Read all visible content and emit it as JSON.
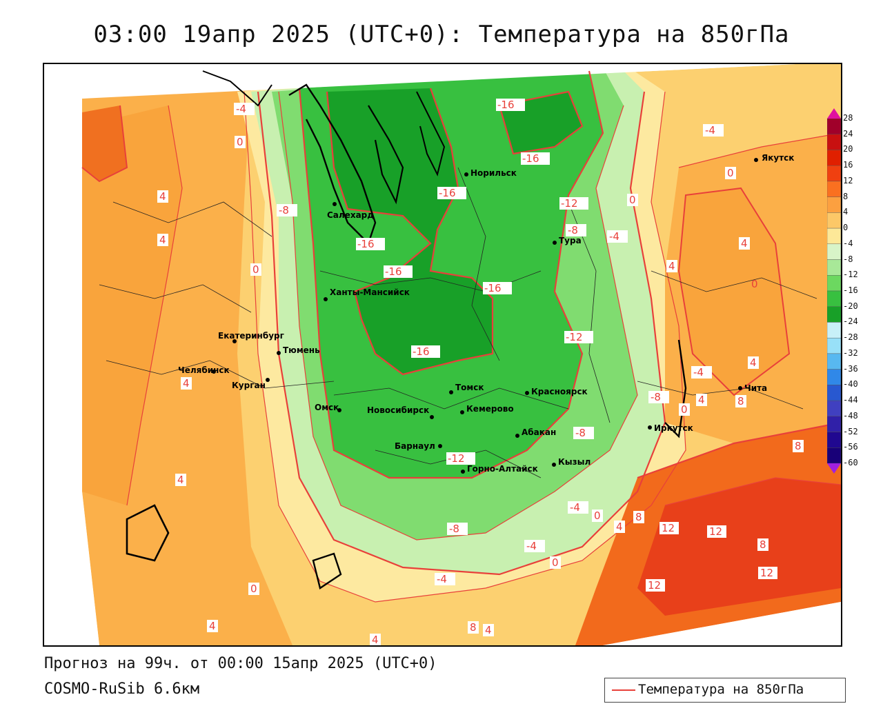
{
  "title": "03:00 19апр 2025 (UTC+0): Температура на 850гПа",
  "footer": {
    "forecast": "Прогноз на 99ч. от 00:00 15апр 2025 (UTC+0)",
    "model": "COSMO-RuSib 6.6км"
  },
  "legend": {
    "line_label": "Температура на 850гПа",
    "line_color": "#e8403a"
  },
  "colorbar": {
    "levels": [
      "28",
      "24",
      "20",
      "16",
      "12",
      "8",
      "4",
      "0",
      "-4",
      "-8",
      "-12",
      "-16",
      "-20",
      "-24",
      "-28",
      "-32",
      "-36",
      "-40",
      "-44",
      "-48",
      "-52",
      "-56",
      "-60"
    ],
    "colors": [
      "#a0002a",
      "#c81010",
      "#e02000",
      "#f04010",
      "#fa7020",
      "#fca040",
      "#fcc868",
      "#fde898",
      "#d8f4c8",
      "#a8e898",
      "#6cd860",
      "#38c040",
      "#18a028",
      "#c8f0f8",
      "#98e0f8",
      "#58b8f0",
      "#3088e8",
      "#2858d0",
      "#4040c0",
      "#3020a8",
      "#200890",
      "#180078"
    ]
  },
  "cities": [
    {
      "name": "Якутск"
    },
    {
      "name": "Норильск"
    },
    {
      "name": "Салехард"
    },
    {
      "name": "Тура"
    },
    {
      "name": "Ханты-Мансийск"
    },
    {
      "name": "Екатеринбург"
    },
    {
      "name": "Тюмень"
    },
    {
      "name": "Челябинск"
    },
    {
      "name": "Курган"
    },
    {
      "name": "Омск"
    },
    {
      "name": "Томск"
    },
    {
      "name": "Красноярск"
    },
    {
      "name": "Новосибирск"
    },
    {
      "name": "Кемерово"
    },
    {
      "name": "Абакан"
    },
    {
      "name": "Барнаул"
    },
    {
      "name": "Иркутск"
    },
    {
      "name": "Горно-Алтайск"
    },
    {
      "name": "Кызыл"
    },
    {
      "name": "Чита"
    }
  ],
  "contour_labels": [
    "-4",
    "-16",
    "-4",
    "0",
    "-16",
    "0",
    "4",
    "-16",
    "-12",
    "0",
    "-8",
    "4",
    "-16",
    "-8",
    "-4",
    "4",
    "0",
    "4",
    "-16",
    "-16",
    "-12",
    "-16",
    "4",
    "-8",
    "0",
    "-4",
    "4",
    "8",
    "8",
    "0",
    "4",
    "-12",
    "-8",
    "-8",
    "-4",
    "0",
    "4",
    "8",
    "12",
    "12",
    "8",
    "12",
    "12",
    "-4",
    "0",
    "4",
    "-4",
    "0",
    "4",
    "8",
    "4",
    "4"
  ]
}
